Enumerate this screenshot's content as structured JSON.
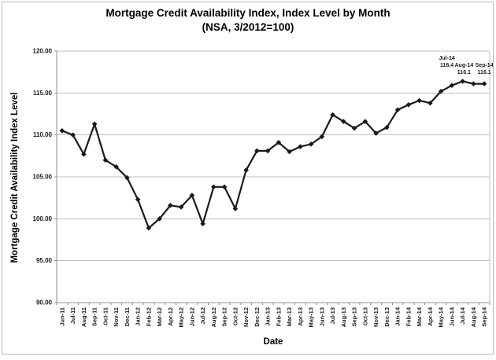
{
  "chart_data": {
    "type": "line",
    "title": "Mortgage Credit Availability Index, Index Level by Month",
    "subtitle": "(NSA, 3/2012=100)",
    "xlabel": "Date",
    "ylabel": "Mortgage Credit Availability Index Level",
    "ylim": [
      90,
      120
    ],
    "ytick_step": 5,
    "y_tick_labels": [
      "120.00",
      "115.00",
      "110.00",
      "105.00",
      "100.00",
      "95.00",
      "90.00"
    ],
    "grid": true,
    "legend": false,
    "marker": "diamond",
    "line_color": "#1a1a1a",
    "gridline_color": "#c0c0c0",
    "axis_color": "#8e8e8e",
    "categories": [
      "Jun-11",
      "Jul-11",
      "Aug-11",
      "Sep-11",
      "Oct-11",
      "Nov-11",
      "Dec-11",
      "Jan-12",
      "Feb-12",
      "Mar-12",
      "Apr-12",
      "May-12",
      "Jun-12",
      "Jul-12",
      "Aug-12",
      "Sep-12",
      "Oct-12",
      "Nov-12",
      "Dec-12",
      "Jan-13",
      "Feb-13",
      "Mar-13",
      "Apr-13",
      "May-13",
      "Jun-13",
      "Jul-13",
      "Aug-13",
      "Sep-13",
      "Oct-13",
      "Nov-13",
      "Dec-13",
      "Jan-14",
      "Feb-14",
      "Mar-14",
      "Apr-14",
      "May-14",
      "Jun-14",
      "Jul-14",
      "Aug-14",
      "Sep-14"
    ],
    "values": [
      110.5,
      110.0,
      107.7,
      111.3,
      107.0,
      106.2,
      104.9,
      102.3,
      98.9,
      100.0,
      101.6,
      101.4,
      102.8,
      99.4,
      103.8,
      103.8,
      101.2,
      105.8,
      108.1,
      108.1,
      109.1,
      108.0,
      108.6,
      108.9,
      109.8,
      112.4,
      111.6,
      110.8,
      111.6,
      110.2,
      110.9,
      113.0,
      113.6,
      114.1,
      113.8,
      115.2,
      115.9,
      116.4,
      116.1,
      116.1
    ],
    "annotations": [
      {
        "month": "Jul-14",
        "value": "116.4",
        "bold": false
      },
      {
        "month": "Aug-14",
        "value": "116.1",
        "bold": false
      },
      {
        "month": "Sep-14",
        "value": "116.1",
        "bold": true
      }
    ]
  },
  "colors": {
    "background": "#ffffff",
    "outer_border": "#b5b5b5",
    "line": "#1a1a1a",
    "gridline": "#c0c0c0",
    "axis": "#8e8e8e",
    "text": "#000000"
  }
}
